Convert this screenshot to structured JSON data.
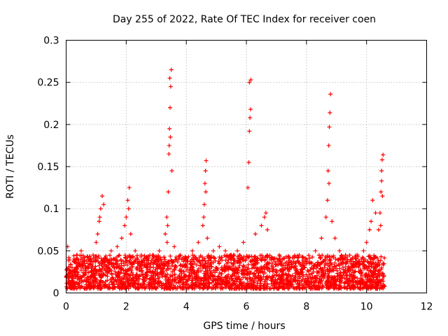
{
  "chart_data": {
    "type": "scatter",
    "title": "Day 255 of 2022, Rate Of TEC Index for receiver coen",
    "xlabel": "GPS time / hours",
    "ylabel": "ROTI / TECUs",
    "xlim": [
      0,
      12
    ],
    "ylim": [
      0,
      0.3
    ],
    "xticks": [
      0,
      2,
      4,
      6,
      8,
      10,
      12
    ],
    "yticks": [
      0,
      0.05,
      0.1,
      0.15,
      0.2,
      0.25,
      0.3
    ],
    "xtick_labels": [
      "0",
      "2",
      "4",
      "6",
      "8",
      "10",
      "12"
    ],
    "ytick_labels": [
      "0",
      "0.05",
      "0.1",
      "0.15",
      "0.2",
      "0.25",
      "0.3"
    ],
    "grid": true,
    "marker": "+",
    "color": "#ff0000",
    "data_range_hours": [
      0,
      10.6
    ],
    "baseline_band": [
      0.005,
      0.045
    ],
    "series": [
      {
        "name": "ROTI",
        "x": [
          0.05,
          0.1,
          0.2,
          0.35,
          0.5,
          0.6,
          0.75,
          0.9,
          1.0,
          1.1,
          1.15,
          1.2,
          1.25,
          1.05,
          1.12,
          1.5,
          1.6,
          1.7,
          1.85,
          1.95,
          2.0,
          2.05,
          2.1,
          2.08,
          2.15,
          2.3,
          2.5,
          2.7,
          2.9,
          3.1,
          3.3,
          3.35,
          3.4,
          3.42,
          3.44,
          3.46,
          3.48,
          3.5,
          3.45,
          3.43,
          3.47,
          3.52,
          3.38,
          3.36,
          3.6,
          3.8,
          4.0,
          4.2,
          4.4,
          4.55,
          4.6,
          4.62,
          4.64,
          4.66,
          4.58,
          4.65,
          4.7,
          4.9,
          5.1,
          5.3,
          5.5,
          5.7,
          5.9,
          6.05,
          6.08,
          6.1,
          6.12,
          6.14,
          6.1,
          6.15,
          6.3,
          6.5,
          6.6,
          6.65,
          6.7,
          6.9,
          7.1,
          7.3,
          7.5,
          7.7,
          7.9,
          8.1,
          8.3,
          8.5,
          8.65,
          8.7,
          8.72,
          8.74,
          8.76,
          8.78,
          8.8,
          8.75,
          8.85,
          8.95,
          9.1,
          9.3,
          9.5,
          9.7,
          9.9,
          10.0,
          10.1,
          10.15,
          10.2,
          10.3,
          10.4,
          10.45,
          10.48,
          10.5,
          10.52,
          10.55,
          10.5,
          10.47,
          10.53
        ],
        "y": [
          0.055,
          0.04,
          0.03,
          0.045,
          0.05,
          0.035,
          0.04,
          0.045,
          0.06,
          0.085,
          0.1,
          0.115,
          0.105,
          0.07,
          0.09,
          0.05,
          0.04,
          0.055,
          0.065,
          0.08,
          0.09,
          0.11,
          0.125,
          0.1,
          0.07,
          0.05,
          0.045,
          0.04,
          0.045,
          0.05,
          0.07,
          0.09,
          0.12,
          0.165,
          0.195,
          0.22,
          0.245,
          0.265,
          0.255,
          0.175,
          0.185,
          0.145,
          0.08,
          0.06,
          0.055,
          0.045,
          0.04,
          0.05,
          0.06,
          0.08,
          0.105,
          0.13,
          0.145,
          0.157,
          0.09,
          0.12,
          0.065,
          0.05,
          0.055,
          0.05,
          0.045,
          0.05,
          0.06,
          0.125,
          0.155,
          0.192,
          0.208,
          0.218,
          0.25,
          0.253,
          0.07,
          0.08,
          0.09,
          0.095,
          0.075,
          0.04,
          0.035,
          0.03,
          0.03,
          0.025,
          0.03,
          0.035,
          0.05,
          0.065,
          0.09,
          0.11,
          0.145,
          0.175,
          0.197,
          0.214,
          0.236,
          0.13,
          0.085,
          0.065,
          0.05,
          0.045,
          0.04,
          0.045,
          0.05,
          0.06,
          0.075,
          0.085,
          0.11,
          0.095,
          0.075,
          0.095,
          0.12,
          0.145,
          0.158,
          0.164,
          0.133,
          0.08,
          0.115
        ]
      }
    ]
  }
}
